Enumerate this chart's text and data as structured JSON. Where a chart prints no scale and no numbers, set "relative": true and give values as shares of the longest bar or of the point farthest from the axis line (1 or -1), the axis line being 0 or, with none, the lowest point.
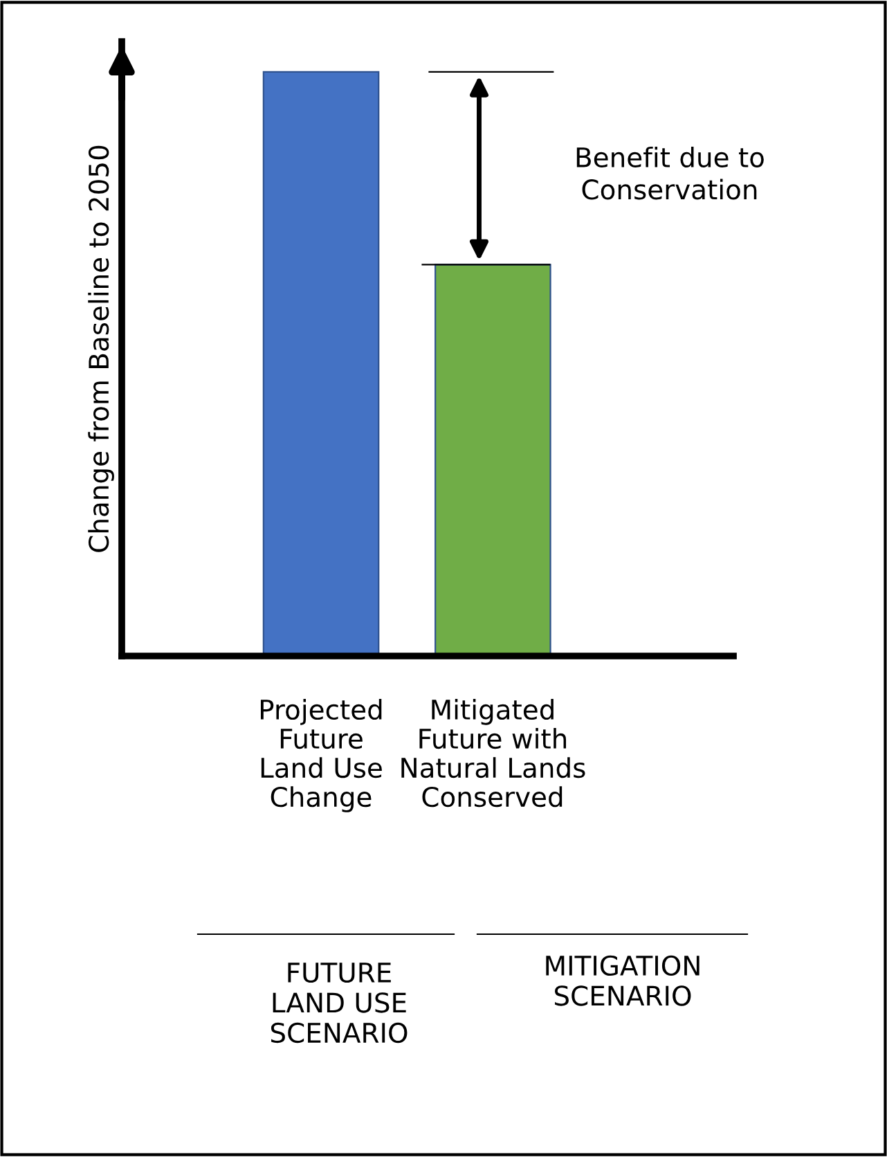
{
  "chart_data": {
    "type": "bar",
    "relative": true,
    "ylabel": "Change from Baseline to 2050",
    "categories": [
      "Projected\nFuture\nLand Use\nChange",
      "Mitigated\nFuture with\nNatural Lands\nConserved"
    ],
    "values": [
      1,
      0.67
    ],
    "colors": [
      "#4472c4",
      "#70ad47"
    ],
    "annotations": [
      "Benefit due to\nConservation",
      "FUTURE\nLAND USE\nSCENARIO",
      "MITIGATION\nSCENARIO"
    ],
    "tick_labels": "x"
  }
}
